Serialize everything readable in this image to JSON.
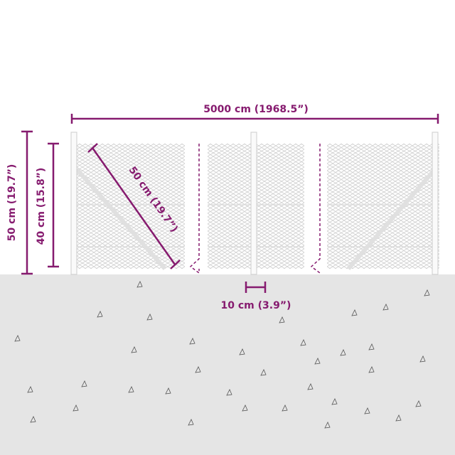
{
  "dimensions": {
    "total_length": "5000 cm (1968.5”)",
    "total_height": "50 cm (19.7”)",
    "mesh_height": "40 cm (15.8”)",
    "post_length": "50 cm (19.7”)",
    "post_width": "10 cm (3.9”)"
  },
  "colors": {
    "accent": "#861b6f",
    "ground": "#e5e5e5",
    "mesh": "#cfcfcf"
  }
}
